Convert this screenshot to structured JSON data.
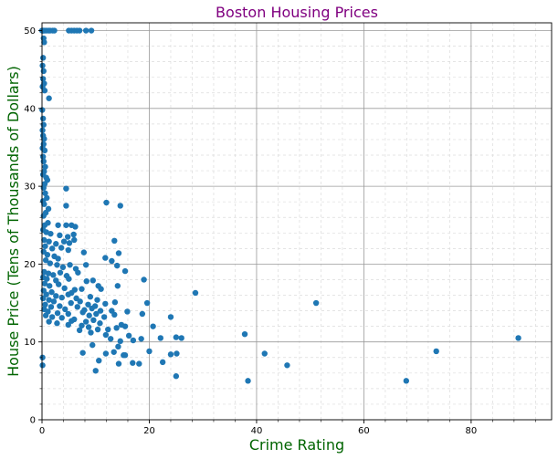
{
  "colors": {
    "title": "#800080",
    "axis_label": "#006400",
    "point": "#1f77b4"
  },
  "chart_data": {
    "type": "scatter",
    "title": "Boston Housing Prices",
    "xlabel": "Crime Rating",
    "ylabel": "House Price (Tens of Thousands of Dollars)",
    "xlim": [
      0,
      95
    ],
    "ylim": [
      0,
      51
    ],
    "xticks": [
      0,
      20,
      40,
      60,
      80
    ],
    "yticks": [
      0,
      10,
      20,
      30,
      40,
      50
    ],
    "grid": true,
    "minor_grid": true,
    "series": [
      {
        "points": [
          [
            0.02,
            50
          ],
          [
            0.05,
            50
          ],
          [
            0.1,
            50
          ],
          [
            0.2,
            50
          ],
          [
            0.3,
            50
          ],
          [
            0.5,
            50
          ],
          [
            0.8,
            50
          ],
          [
            1.2,
            50
          ],
          [
            1.5,
            50
          ],
          [
            2.0,
            50
          ],
          [
            2.3,
            50
          ],
          [
            5.0,
            50
          ],
          [
            5.5,
            50
          ],
          [
            6.0,
            50
          ],
          [
            6.5,
            50
          ],
          [
            7.0,
            50
          ],
          [
            8.2,
            50
          ],
          [
            9.2,
            50
          ],
          [
            0.3,
            49
          ],
          [
            0.4,
            48.5
          ],
          [
            0.2,
            46.5
          ],
          [
            0.1,
            45.5
          ],
          [
            0.3,
            44.8
          ],
          [
            0.2,
            43.8
          ],
          [
            0.4,
            43.2
          ],
          [
            0.1,
            42.8
          ],
          [
            0.5,
            42.3
          ],
          [
            1.3,
            41.3
          ],
          [
            0.05,
            39.8
          ],
          [
            0.2,
            38.7
          ],
          [
            0.3,
            37.9
          ],
          [
            0.1,
            37.2
          ],
          [
            0.2,
            36.5
          ],
          [
            0.4,
            36.1
          ],
          [
            0.3,
            35.4
          ],
          [
            0.1,
            34.9
          ],
          [
            0.5,
            34.6
          ],
          [
            0.2,
            33.8
          ],
          [
            0.3,
            33.2
          ],
          [
            0.6,
            32.5
          ],
          [
            0.4,
            31.9
          ],
          [
            0.2,
            31.5
          ],
          [
            0.8,
            31.1
          ],
          [
            1.0,
            30.8
          ],
          [
            0.5,
            30.3
          ],
          [
            0.3,
            29.8
          ],
          [
            4.5,
            29.7
          ],
          [
            0.6,
            29.1
          ],
          [
            0.9,
            28.5
          ],
          [
            0.2,
            28.1
          ],
          [
            0.4,
            27.7
          ],
          [
            12.0,
            27.9
          ],
          [
            14.6,
            27.5
          ],
          [
            1.2,
            27.1
          ],
          [
            4.5,
            27.5
          ],
          [
            0.7,
            26.6
          ],
          [
            0.3,
            26.2
          ],
          [
            1.1,
            25.3
          ],
          [
            0.5,
            25.0
          ],
          [
            3.0,
            25.0
          ],
          [
            4.5,
            25.0
          ],
          [
            5.5,
            25.0
          ],
          [
            6.2,
            24.8
          ],
          [
            0.2,
            24.4
          ],
          [
            0.8,
            24.1
          ],
          [
            1.6,
            23.9
          ],
          [
            3.3,
            23.7
          ],
          [
            4.8,
            23.5
          ],
          [
            5.9,
            23.8
          ],
          [
            0.4,
            23.1
          ],
          [
            1.3,
            22.9
          ],
          [
            2.6,
            22.6
          ],
          [
            4.1,
            22.9
          ],
          [
            5.1,
            22.7
          ],
          [
            6.0,
            23.1
          ],
          [
            13.5,
            23.0
          ],
          [
            0.6,
            22.3
          ],
          [
            1.9,
            22.0
          ],
          [
            3.6,
            22.1
          ],
          [
            4.9,
            21.8
          ],
          [
            7.8,
            21.5
          ],
          [
            14.3,
            21.4
          ],
          [
            0.3,
            21.6
          ],
          [
            1.0,
            21.2
          ],
          [
            2.3,
            21.0
          ],
          [
            3.0,
            20.7
          ],
          [
            11.8,
            20.8
          ],
          [
            13.0,
            20.4
          ],
          [
            0.7,
            20.5
          ],
          [
            1.5,
            20.1
          ],
          [
            2.8,
            19.9
          ],
          [
            3.9,
            19.6
          ],
          [
            5.2,
            19.9
          ],
          [
            6.3,
            19.4
          ],
          [
            8.2,
            19.9
          ],
          [
            14.0,
            19.8
          ],
          [
            15.5,
            19.1
          ],
          [
            19.0,
            18.0
          ],
          [
            0.4,
            19.0
          ],
          [
            1.2,
            18.8
          ],
          [
            2.1,
            18.6
          ],
          [
            3.4,
            18.9
          ],
          [
            4.6,
            18.5
          ],
          [
            6.7,
            18.9
          ],
          [
            0.2,
            18.3
          ],
          [
            0.9,
            18.1
          ],
          [
            2.6,
            17.9
          ],
          [
            5.0,
            18.1
          ],
          [
            8.3,
            17.8
          ],
          [
            9.5,
            17.9
          ],
          [
            10.5,
            17.2
          ],
          [
            14.1,
            17.2
          ],
          [
            0.5,
            17.5
          ],
          [
            1.4,
            17.2
          ],
          [
            3.1,
            17.4
          ],
          [
            4.2,
            16.9
          ],
          [
            6.1,
            16.7
          ],
          [
            7.4,
            16.8
          ],
          [
            11.0,
            16.8
          ],
          [
            28.6,
            16.3
          ],
          [
            0.3,
            16.6
          ],
          [
            1.8,
            16.4
          ],
          [
            5.5,
            16.3
          ],
          [
            0.8,
            16.1
          ],
          [
            2.6,
            15.9
          ],
          [
            3.7,
            15.7
          ],
          [
            4.9,
            16.1
          ],
          [
            6.4,
            15.6
          ],
          [
            9.0,
            15.8
          ],
          [
            10.3,
            15.4
          ],
          [
            13.6,
            15.1
          ],
          [
            0.2,
            15.6
          ],
          [
            1.3,
            15.4
          ],
          [
            2.2,
            15.2
          ],
          [
            5.4,
            15.0
          ],
          [
            7.1,
            15.2
          ],
          [
            8.6,
            14.8
          ],
          [
            9.9,
            14.6
          ],
          [
            11.8,
            14.9
          ],
          [
            19.6,
            15.0
          ],
          [
            51.1,
            15.0
          ],
          [
            0.6,
            14.8
          ],
          [
            1.7,
            14.5
          ],
          [
            3.3,
            14.6
          ],
          [
            4.3,
            14.2
          ],
          [
            6.6,
            14.5
          ],
          [
            7.9,
            14.1
          ],
          [
            9.3,
            14.3
          ],
          [
            10.9,
            14.0
          ],
          [
            13.0,
            14.0
          ],
          [
            15.9,
            13.9
          ],
          [
            18.7,
            13.6
          ],
          [
            0.4,
            14.2
          ],
          [
            1.1,
            13.9
          ],
          [
            2.9,
            13.7
          ],
          [
            4.9,
            13.6
          ],
          [
            7.6,
            13.8
          ],
          [
            8.8,
            13.4
          ],
          [
            10.1,
            13.6
          ],
          [
            11.6,
            13.2
          ],
          [
            13.5,
            13.5
          ],
          [
            0.7,
            13.4
          ],
          [
            1.9,
            13.2
          ],
          [
            3.7,
            13.1
          ],
          [
            6.0,
            12.9
          ],
          [
            8.2,
            12.6
          ],
          [
            9.6,
            12.8
          ],
          [
            10.8,
            12.4
          ],
          [
            14.8,
            12.2
          ],
          [
            20.7,
            12.0
          ],
          [
            24.0,
            13.2
          ],
          [
            1.3,
            12.6
          ],
          [
            2.8,
            12.4
          ],
          [
            5.5,
            12.7
          ],
          [
            7.4,
            12.1
          ],
          [
            8.7,
            11.9
          ],
          [
            12.3,
            11.6
          ],
          [
            13.9,
            11.8
          ],
          [
            15.5,
            12.0
          ],
          [
            4.9,
            12.2
          ],
          [
            7.0,
            11.5
          ],
          [
            9.1,
            11.2
          ],
          [
            10.4,
            11.6
          ],
          [
            22.1,
            10.5
          ],
          [
            25.0,
            10.6
          ],
          [
            26.0,
            10.5
          ],
          [
            37.8,
            11.0
          ],
          [
            88.8,
            10.5
          ],
          [
            11.9,
            10.9
          ],
          [
            12.8,
            10.4
          ],
          [
            14.6,
            10.1
          ],
          [
            16.2,
            10.8
          ],
          [
            18.5,
            10.4
          ],
          [
            9.4,
            9.6
          ],
          [
            14.2,
            9.4
          ],
          [
            17.0,
            10.2
          ],
          [
            20.0,
            8.8
          ],
          [
            15.2,
            8.3
          ],
          [
            11.9,
            8.5
          ],
          [
            13.4,
            8.7
          ],
          [
            15.5,
            8.3
          ],
          [
            7.6,
            8.6
          ],
          [
            24.0,
            8.4
          ],
          [
            25.1,
            8.5
          ],
          [
            41.5,
            8.5
          ],
          [
            73.5,
            8.8
          ],
          [
            0.1,
            8.0
          ],
          [
            10.6,
            7.6
          ],
          [
            14.3,
            7.2
          ],
          [
            16.9,
            7.3
          ],
          [
            18.1,
            7.2
          ],
          [
            22.5,
            7.4
          ],
          [
            45.7,
            7.0
          ],
          [
            0.1,
            7.0
          ],
          [
            10.0,
            6.3
          ],
          [
            25.0,
            5.6
          ],
          [
            38.4,
            5.0
          ],
          [
            67.9,
            5.0
          ]
        ]
      }
    ]
  }
}
